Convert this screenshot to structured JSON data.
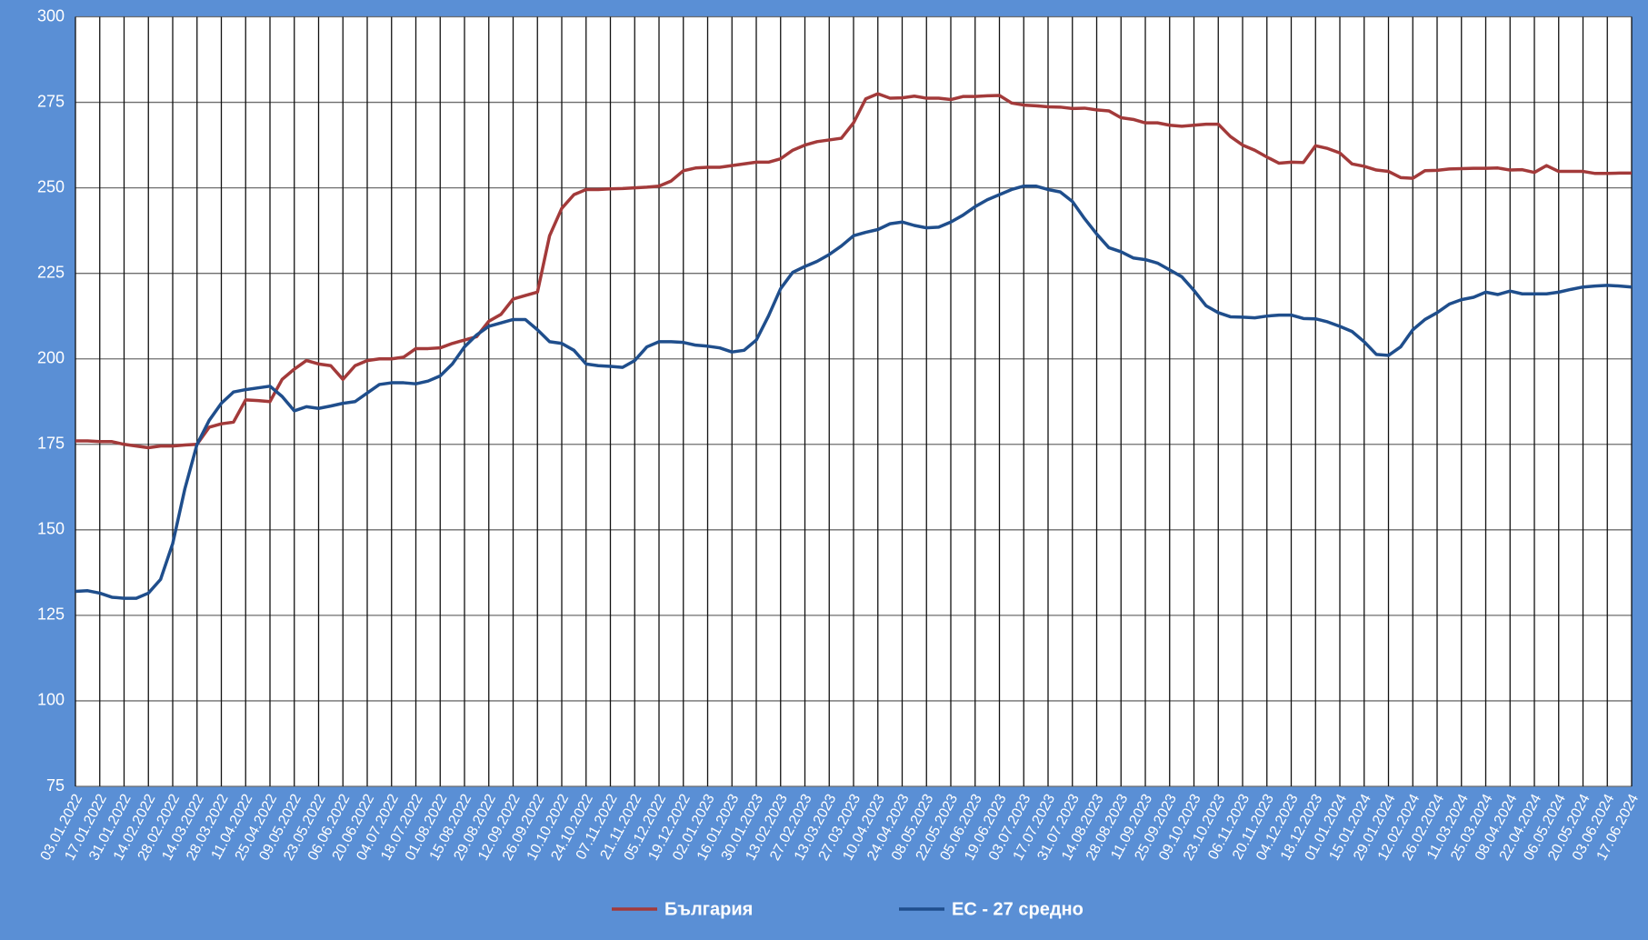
{
  "chart_data": {
    "type": "line",
    "categories": [
      "03.01.2022",
      null,
      "17.01.2022",
      null,
      "31.01.2022",
      null,
      "14.02.2022",
      null,
      "28.02.2022",
      null,
      "14.03.2022",
      null,
      "28.03.2022",
      null,
      "11.04.2022",
      null,
      "25.04.2022",
      null,
      "09.05.2022",
      null,
      "23.05.2022",
      null,
      "06.06.2022",
      null,
      "20.06.2022",
      null,
      "04.07.2022",
      null,
      "18.07.2022",
      null,
      "01.08.2022",
      null,
      "15.08.2022",
      null,
      "29.08.2022",
      null,
      "12.09.2022",
      null,
      "26.09.2022",
      null,
      "10.10.2022",
      null,
      "24.10.2022",
      null,
      "07.11.2022",
      null,
      "21.11.2022",
      null,
      "05.12.2022",
      null,
      "19.12.2022",
      null,
      "02.01.2023",
      null,
      "16.01.2023",
      null,
      "30.01.2023",
      null,
      "13.02.2023",
      null,
      "27.02.2023",
      null,
      "13.03.2023",
      null,
      "27.03.2023",
      null,
      "10.04.2023",
      null,
      "24.04.2023",
      null,
      "08.05.2023",
      null,
      "22.05.2023",
      null,
      "05.06.2023",
      null,
      "19.06.2023",
      null,
      "03.07.2023",
      null,
      "17.07.2023",
      null,
      "31.07.2023",
      null,
      "14.08.2023",
      null,
      "28.08.2023",
      null,
      "11.09.2023",
      null,
      "25.09.2023",
      null,
      "09.10.2023",
      null,
      "23.10.2023",
      null,
      "06.11.2023",
      null,
      "20.11.2023",
      null,
      "04.12.2023",
      null,
      "18.12.2023",
      null,
      "01.01.2024",
      null,
      "15.01.2024",
      null,
      "29.01.2024",
      null,
      "12.02.2024",
      null,
      "26.02.2024",
      null,
      "11.03.2024",
      null,
      "25.03.2024",
      null,
      "08.04.2024",
      null,
      "22.04.2024",
      null,
      "06.05.2024",
      null,
      "20.05.2024",
      null,
      "03.06.2024",
      null,
      "17.06.2024"
    ],
    "series": [
      {
        "name": "България",
        "color": "#a33a3a",
        "values": [
          176,
          176,
          175.8,
          175.8,
          175,
          174.5,
          174,
          174.5,
          174.5,
          174.8,
          175,
          180,
          181,
          181.5,
          188,
          187.8,
          187.5,
          194,
          197,
          199.5,
          198.5,
          198,
          194,
          198,
          199.5,
          200,
          200,
          200.5,
          203,
          203,
          203.2,
          204.5,
          205.5,
          206.5,
          211,
          213,
          217.5,
          218.5,
          219.5,
          236,
          244,
          248,
          249.5,
          249.5,
          249.7,
          249.8,
          250,
          250.2,
          250.5,
          252,
          255,
          255.8,
          256,
          256,
          256.5,
          257,
          257.5,
          257.5,
          258.5,
          261,
          262.5,
          263.5,
          264,
          264.5,
          269,
          276,
          277.5,
          276.2,
          276.3,
          276.8,
          276.2,
          276.2,
          275.8,
          276.7,
          276.7,
          276.9,
          277,
          274.8,
          274.2,
          274,
          273.7,
          273.6,
          273.2,
          273.3,
          272.8,
          272.5,
          270.5,
          270,
          269,
          269,
          268.3,
          268,
          268.3,
          268.6,
          268.6,
          265,
          262.5,
          261,
          259,
          257.2,
          257.5,
          257.4,
          262.3,
          261.5,
          260.2,
          257,
          256.3,
          255.2,
          254.8,
          253,
          252.8,
          255,
          255.1,
          255.5,
          255.6,
          255.7,
          255.7,
          255.8,
          255.2,
          255.3,
          254.5,
          256.5,
          254.8,
          254.8,
          254.8,
          254.2,
          254.2,
          254.3,
          254.3
        ]
      },
      {
        "name": "ЕС - 27 средно",
        "color": "#1f4e8c",
        "values": [
          132,
          132.2,
          131.5,
          130.3,
          130,
          130,
          131.5,
          135.5,
          146,
          162,
          175,
          182,
          187,
          190.3,
          191,
          191.5,
          192,
          189,
          184.8,
          186,
          185.5,
          186.2,
          187,
          187.5,
          190,
          192.5,
          193,
          193,
          192.7,
          193.5,
          195,
          198.5,
          203.5,
          207,
          209.5,
          210.5,
          211.5,
          211.5,
          208.5,
          205,
          204.5,
          202.5,
          198.5,
          198,
          197.8,
          197.5,
          199.5,
          203.5,
          205,
          205,
          204.8,
          204,
          203.7,
          203.2,
          202,
          202.5,
          205.5,
          212.5,
          220.5,
          225.3,
          227,
          228.5,
          230.5,
          233,
          236,
          237,
          237.8,
          239.5,
          240,
          239,
          238.3,
          238.5,
          240,
          242,
          244.5,
          246.5,
          248,
          249.5,
          250.5,
          250.5,
          249.5,
          248.8,
          246,
          241,
          236.5,
          232.5,
          231.3,
          229.5,
          229,
          228,
          226,
          224,
          220,
          215.5,
          213.5,
          212.3,
          212.2,
          212,
          212.5,
          212.8,
          212.8,
          211.8,
          211.7,
          210.8,
          209.5,
          208,
          205,
          201.3,
          201,
          203.5,
          208.5,
          211.5,
          213.5,
          216,
          217.3,
          218,
          219.5,
          218.8,
          219.8,
          219,
          219,
          219,
          219.5,
          220.3,
          221,
          221.3,
          221.5,
          221.3,
          221
        ]
      }
    ],
    "ylim": [
      75,
      300
    ],
    "yticks": [
      75,
      100,
      125,
      150,
      175,
      200,
      225,
      250,
      275,
      300
    ],
    "grid": true,
    "legend": "bottom"
  }
}
